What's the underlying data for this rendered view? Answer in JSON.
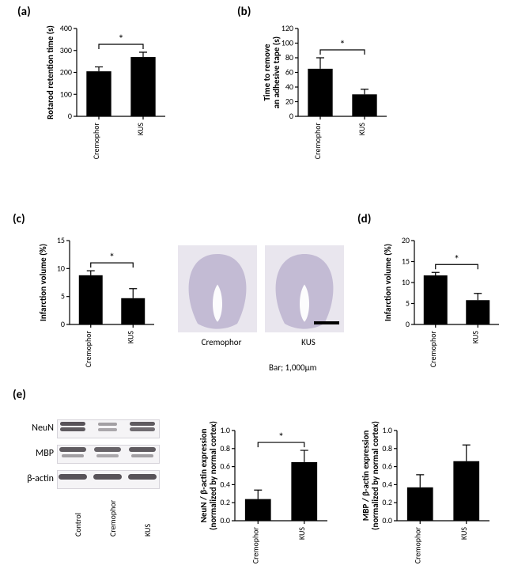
{
  "labels": {
    "a": "(a)",
    "b": "(b)",
    "c": "(c)",
    "d": "(d)",
    "e": "(e)"
  },
  "panel_a": {
    "type": "bar",
    "ylabel": "Rotarod retention time (s)",
    "categories": [
      "Cremophor",
      "KUS"
    ],
    "values": [
      205,
      270
    ],
    "errors": [
      20,
      22
    ],
    "ylim": [
      0,
      400
    ],
    "ytick_step": 100,
    "bar_color": "#000000",
    "background_color": "#ffffff",
    "bar_width": 0.28,
    "sig_pairs": [
      [
        0,
        1,
        "*"
      ]
    ]
  },
  "panel_b": {
    "type": "bar",
    "ylabel": "Time to remove\nan adhesive tape (s)",
    "categories": [
      "Cremophor",
      "KUS"
    ],
    "values": [
      65,
      30
    ],
    "errors": [
      15,
      7
    ],
    "ylim": [
      0,
      120
    ],
    "ytick_step": 20,
    "bar_color": "#000000",
    "background_color": "#ffffff",
    "bar_width": 0.28,
    "sig_pairs": [
      [
        0,
        1,
        "*"
      ]
    ]
  },
  "panel_c": {
    "type": "bar",
    "ylabel": "Infarction volume (%)",
    "categories": [
      "Cremophor",
      "KUS"
    ],
    "values": [
      8.8,
      4.7
    ],
    "errors": [
      0.8,
      1.7
    ],
    "ylim": [
      0,
      15
    ],
    "ytick_step": 5,
    "bar_color": "#000000",
    "background_color": "#ffffff",
    "bar_width": 0.28,
    "sig_pairs": [
      [
        0,
        1,
        "*"
      ]
    ]
  },
  "panel_d": {
    "type": "bar",
    "ylabel": "Infarction volume (%)",
    "categories": [
      "Cremophor",
      "KUS"
    ],
    "values": [
      11.7,
      5.8
    ],
    "errors": [
      0.7,
      1.6
    ],
    "ylim": [
      0,
      20
    ],
    "ytick_step": 5,
    "bar_color": "#000000",
    "background_color": "#ffffff",
    "bar_width": 0.28,
    "sig_pairs": [
      [
        0,
        1,
        "*"
      ]
    ]
  },
  "panel_c_histology": {
    "images": [
      "Cremophor",
      "KUS"
    ],
    "bg": "#e9e6ee",
    "tissue_color": "#bfb6d0",
    "scalebar_text": "Bar; 1,000μm"
  },
  "panel_e": {
    "blot_labels": [
      "NeuN",
      "MBP",
      "β-actin"
    ],
    "blot_categories": [
      "Control",
      "Cremophor",
      "KUS"
    ],
    "blot_bg": "#f5f4f6",
    "band_color": "#4f4a50",
    "blot_rows": [
      {
        "lanes": [
          [
            {
              "w": 0.8,
              "h": 5,
              "y": 3,
              "op": 0.95
            },
            {
              "w": 0.8,
              "h": 5,
              "y": 10,
              "op": 0.9
            }
          ],
          [
            {
              "w": 0.6,
              "h": 4,
              "y": 4,
              "op": 0.5
            },
            {
              "w": 0.6,
              "h": 4,
              "y": 11,
              "op": 0.45
            }
          ],
          [
            {
              "w": 0.8,
              "h": 5,
              "y": 3,
              "op": 0.9
            },
            {
              "w": 0.8,
              "h": 5,
              "y": 10,
              "op": 0.8
            }
          ]
        ]
      },
      {
        "lanes": [
          [
            {
              "w": 0.85,
              "h": 6,
              "y": 3,
              "op": 0.9
            },
            {
              "w": 0.7,
              "h": 4,
              "y": 12,
              "op": 0.5
            }
          ],
          [
            {
              "w": 0.85,
              "h": 6,
              "y": 3,
              "op": 0.85
            },
            {
              "w": 0.7,
              "h": 4,
              "y": 12,
              "op": 0.45
            }
          ],
          [
            {
              "w": 0.85,
              "h": 6,
              "y": 3,
              "op": 0.9
            },
            {
              "w": 0.7,
              "h": 4,
              "y": 12,
              "op": 0.5
            }
          ]
        ]
      },
      {
        "lanes": [
          [
            {
              "w": 0.9,
              "h": 7,
              "y": 5,
              "op": 0.95
            }
          ],
          [
            {
              "w": 0.9,
              "h": 7,
              "y": 5,
              "op": 0.95
            }
          ],
          [
            {
              "w": 0.9,
              "h": 7,
              "y": 5,
              "op": 0.95
            }
          ]
        ]
      }
    ]
  },
  "panel_e_chart1": {
    "type": "bar",
    "ylabel": "NeuN / β-actin expression\n(normalized by normal cortex)",
    "categories": [
      "Cremophor",
      "KUS"
    ],
    "values": [
      0.24,
      0.65
    ],
    "errors": [
      0.1,
      0.13
    ],
    "ylim": [
      0,
      1
    ],
    "ytick_step": 0.2,
    "bar_color": "#000000",
    "bar_width": 0.28,
    "sig_pairs": [
      [
        0,
        1,
        "*"
      ]
    ]
  },
  "panel_e_chart2": {
    "type": "bar",
    "ylabel": "MBP / β-actin expression\n(normalized by normal cortex)",
    "categories": [
      "Cremophor",
      "KUS"
    ],
    "values": [
      0.37,
      0.66
    ],
    "errors": [
      0.14,
      0.18
    ],
    "ylim": [
      0,
      1
    ],
    "ytick_step": 0.2,
    "bar_color": "#000000",
    "bar_width": 0.28,
    "sig_pairs": []
  }
}
